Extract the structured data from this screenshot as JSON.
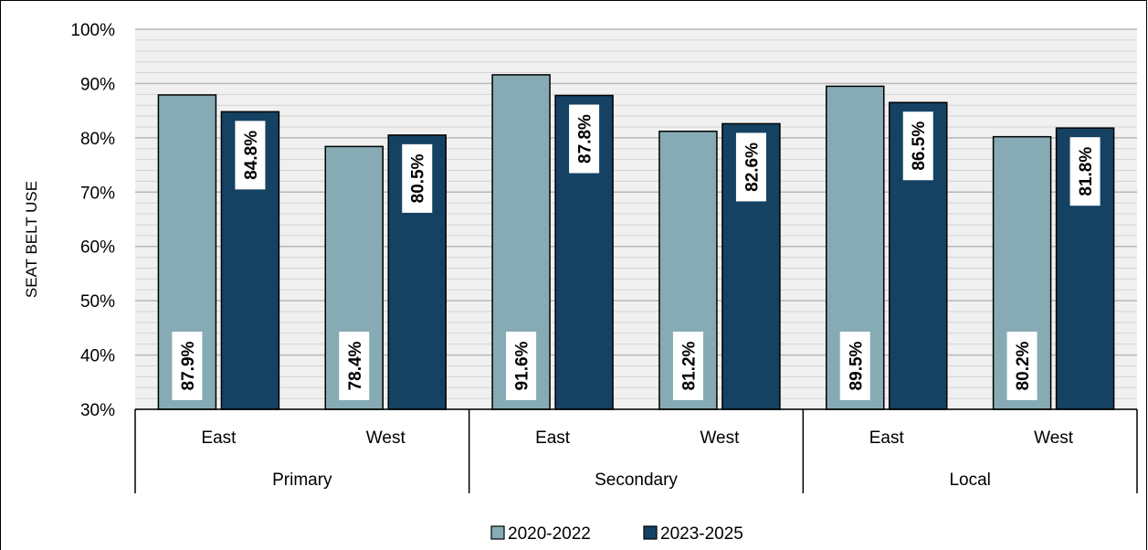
{
  "chart_data": {
    "type": "bar",
    "ylabel": "SEAT BELT USE",
    "ylim": [
      30,
      100
    ],
    "y_ticks": [
      "30%",
      "40%",
      "50%",
      "60%",
      "70%",
      "80%",
      "90%",
      "100%"
    ],
    "grid": true,
    "legend_position": "bottom",
    "groups": [
      {
        "name": "Primary",
        "categories": [
          "East",
          "West"
        ]
      },
      {
        "name": "Secondary",
        "categories": [
          "East",
          "West"
        ]
      },
      {
        "name": "Local",
        "categories": [
          "East",
          "West"
        ]
      }
    ],
    "series": [
      {
        "name": "2020-2022",
        "color": "#86abb5",
        "values": [
          87.9,
          78.4,
          91.6,
          81.2,
          89.5,
          80.2
        ],
        "labels": [
          "87.9%",
          "78.4%",
          "91.6%",
          "81.2%",
          "89.5%",
          "80.2%"
        ]
      },
      {
        "name": "2023-2025",
        "color": "#154263",
        "values": [
          84.8,
          80.5,
          87.8,
          82.6,
          86.5,
          81.8
        ],
        "labels": [
          "84.8%",
          "80.5%",
          "87.8%",
          "82.6%",
          "86.5%",
          "81.8%"
        ]
      }
    ]
  }
}
